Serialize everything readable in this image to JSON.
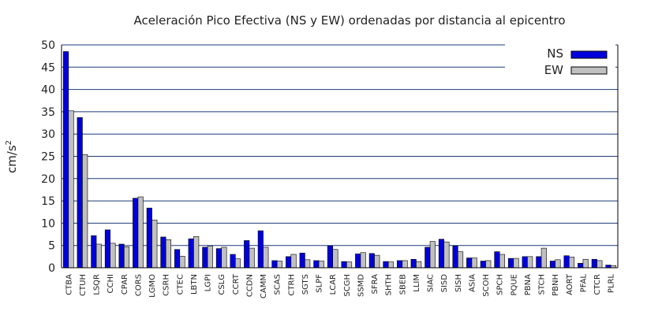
{
  "chart_data": {
    "type": "bar",
    "title": "Aceleración Pico Efectiva (NS y EW) ordenadas por distancia al epicentro",
    "ylabel": "cm/s",
    "ylabel_superscript": "2",
    "xlabel": "",
    "ylim": [
      0,
      50
    ],
    "yticks": [
      0,
      5,
      10,
      15,
      20,
      25,
      30,
      35,
      40,
      45,
      50
    ],
    "grid": true,
    "legend_position": "top-right",
    "categories": [
      "CTBA",
      "CTUH",
      "LSQR",
      "CCHI",
      "CPAR",
      "CORS",
      "LGMO",
      "CSRH",
      "CTEC",
      "LBTN",
      "LGPI",
      "CSLG",
      "CCRT",
      "CCDN",
      "CAMM",
      "SCAS",
      "CTRH",
      "SGTS",
      "SLPF",
      "LCAR",
      "SCGH",
      "SSMD",
      "SFRA",
      "SHTH",
      "SBEB",
      "LLIM",
      "SIAC",
      "SISD",
      "SISH",
      "ASIA",
      "SCOH",
      "SPCH",
      "PQUE",
      "PBNA",
      "STCH",
      "PBNH",
      "AORT",
      "PFAL",
      "CTCR",
      "PLRL"
    ],
    "series": [
      {
        "name": "NS",
        "color": "#0000dd",
        "values": [
          48.5,
          33.7,
          7.2,
          8.5,
          5.3,
          15.6,
          13.4,
          6.9,
          4.1,
          6.5,
          4.6,
          4.3,
          3.0,
          6.1,
          8.3,
          1.6,
          2.5,
          3.3,
          1.6,
          4.9,
          1.4,
          3.1,
          3.2,
          1.4,
          1.6,
          1.9,
          4.6,
          6.4,
          4.9,
          2.2,
          1.5,
          3.6,
          2.1,
          2.5,
          2.5,
          1.5,
          2.7,
          1.0,
          1.9,
          0.6
        ]
      },
      {
        "name": "EW",
        "color": "#c0c0c0",
        "values": [
          35.2,
          25.4,
          5.3,
          5.5,
          4.7,
          15.9,
          10.7,
          6.3,
          2.6,
          7.0,
          4.9,
          4.6,
          2.0,
          4.4,
          4.6,
          1.5,
          3.0,
          1.8,
          1.5,
          4.1,
          1.3,
          3.4,
          2.8,
          1.3,
          1.6,
          1.4,
          5.9,
          5.8,
          3.6,
          2.2,
          1.6,
          3.0,
          2.1,
          2.5,
          4.4,
          1.8,
          2.4,
          1.9,
          1.6,
          0.5
        ]
      }
    ]
  }
}
